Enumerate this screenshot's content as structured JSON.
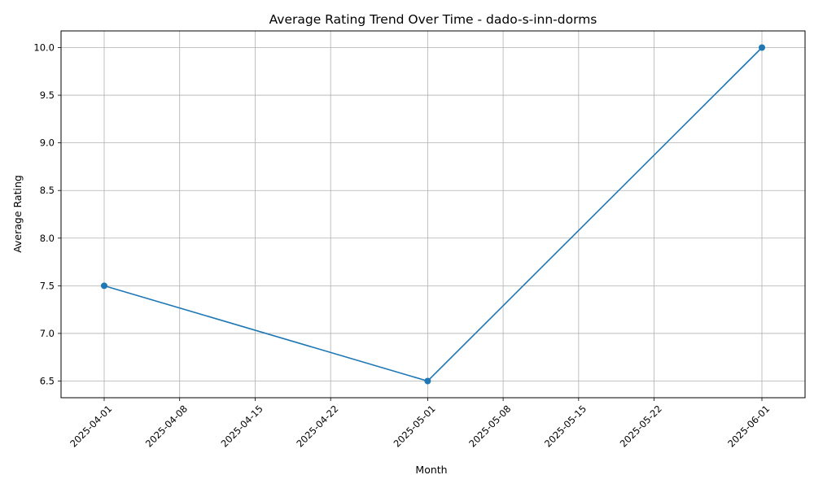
{
  "chart_data": {
    "type": "line",
    "title": "Average Rating Trend Over Time - dado-s-inn-dorms",
    "xlabel": "Month",
    "ylabel": "Average Rating",
    "x_tick_labels": [
      "2025-04-01",
      "2025-04-08",
      "2025-04-15",
      "2025-04-22",
      "2025-05-01",
      "2025-05-08",
      "2025-05-15",
      "2025-05-22",
      "2025-06-01"
    ],
    "y_tick_labels": [
      "6.5",
      "7.0",
      "7.5",
      "8.0",
      "8.5",
      "9.0",
      "9.5",
      "10.0"
    ],
    "y_ticks": [
      6.5,
      7.0,
      7.5,
      8.0,
      8.5,
      9.0,
      9.5,
      10.0
    ],
    "ylim": [
      6.325,
      10.175
    ],
    "xlim": [
      "2025-03-28",
      "2025-06-05"
    ],
    "grid": true,
    "series": [
      {
        "x": [
          "2025-04-01",
          "2025-05-01",
          "2025-06-01"
        ],
        "values": [
          7.5,
          6.5,
          10.0
        ],
        "color": "#1f77b4",
        "marker": "circle"
      }
    ]
  }
}
